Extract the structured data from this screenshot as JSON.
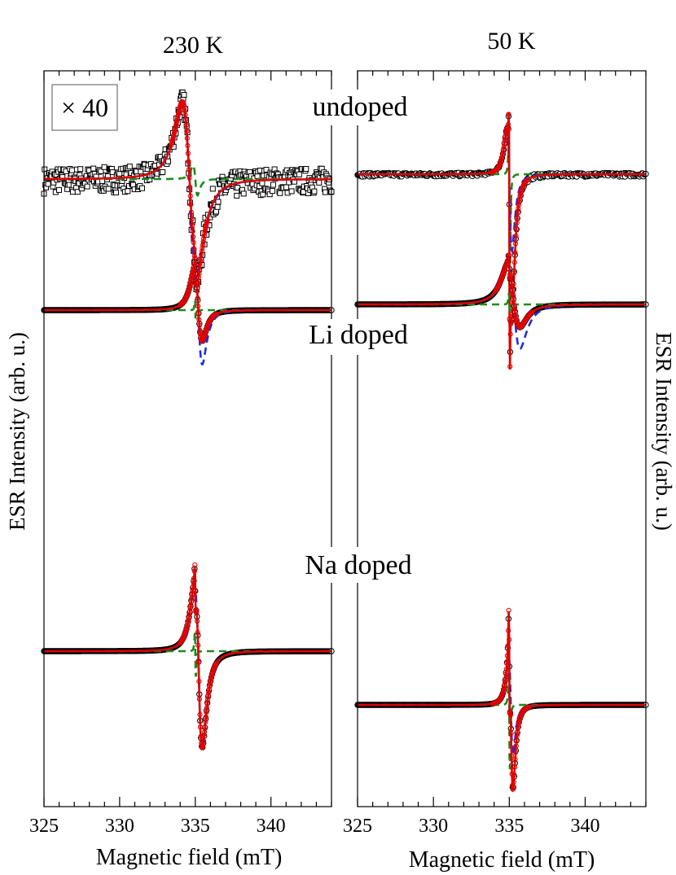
{
  "chart_data": {
    "type": "line",
    "ylabel_left": "ESR Intensity (arb. u.)",
    "ylabel_right": "ESR Intensity (arb. u.)",
    "xlabel": "Magnetic field (mT)",
    "xlim": [
      325,
      344
    ],
    "xticks": [
      "325",
      "330",
      "335",
      "340"
    ],
    "columns": [
      {
        "title": "230 K"
      },
      {
        "title": "50 K"
      }
    ],
    "rows": [
      {
        "label": "undoped",
        "scale_note": "× 40"
      },
      {
        "label": "Li doped"
      },
      {
        "label": "Na doped"
      }
    ],
    "colors": {
      "data": "#000000",
      "fit_total": "#e00000",
      "component_broad": "#1f2ee0",
      "component_narrow": "#1f8a1f"
    },
    "panels": [
      {
        "col": 0,
        "row": 0,
        "x0": 334.6,
        "x1": 335.0,
        "y_pos": 0.95,
        "y_neg": -1.0,
        "w1": 0.8,
        "a1": 1.0,
        "w2": 0.25,
        "a2": 0.18,
        "noise": 0.14
      },
      {
        "col": 1,
        "row": 0,
        "x0": 335.0,
        "x1": 335.0,
        "y_pos": 0.95,
        "y_neg": -1.6,
        "w1": 0.3,
        "a1": 0.85,
        "w2": 0.05,
        "a2": 1.0,
        "noise": 0.02
      },
      {
        "col": 0,
        "row": 1,
        "x0": 335.2,
        "x1": 335.0,
        "y_pos": 1.0,
        "y_neg": -0.45,
        "w1": 0.45,
        "a1": 1.0,
        "w2": 0.04,
        "a2": 0.3,
        "noise": 0.0
      },
      {
        "col": 1,
        "row": 1,
        "x0": 335.3,
        "x1": 335.0,
        "y_pos": 1.0,
        "y_neg": -0.4,
        "w1": 0.7,
        "a1": 1.0,
        "w2": 0.05,
        "a2": 0.3,
        "noise": 0.0
      },
      {
        "col": 0,
        "row": 2,
        "x0": 335.2,
        "x1": 335.0,
        "y_pos": 1.0,
        "y_neg": -0.75,
        "w1": 0.45,
        "a1": 1.0,
        "w2": 0.05,
        "a2": 0.3,
        "noise": 0.0
      },
      {
        "col": 1,
        "row": 2,
        "x0": 335.1,
        "x1": 335.0,
        "y_pos": 1.0,
        "y_neg": -0.9,
        "w1": 0.25,
        "a1": 0.9,
        "w2": 0.05,
        "a2": 0.8,
        "noise": 0.0
      }
    ]
  }
}
